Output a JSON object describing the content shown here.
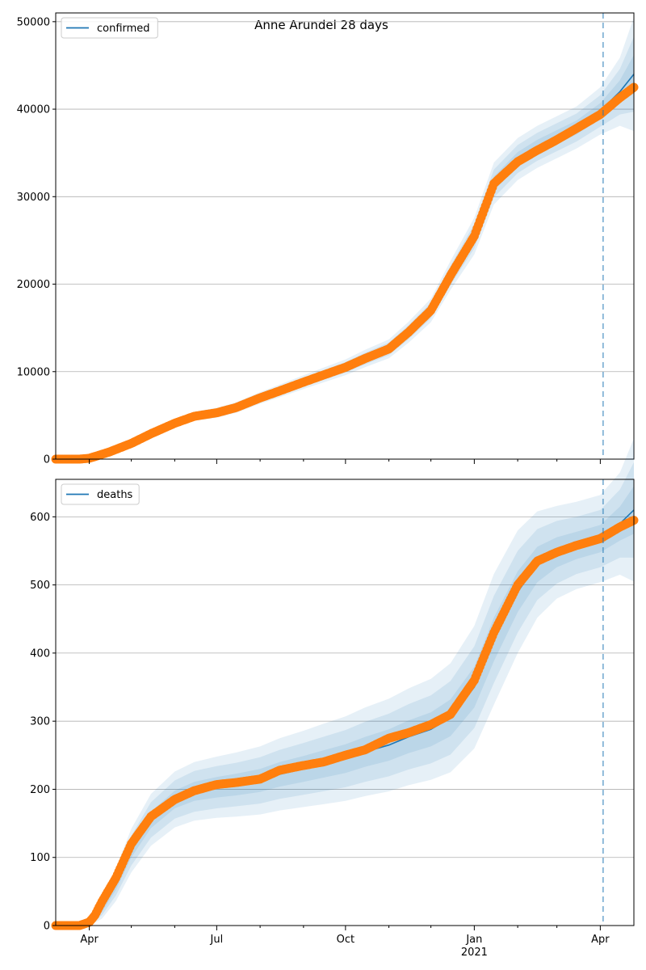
{
  "figure": {
    "title": "Anne Arundel 28 days"
  },
  "chart_data": [
    {
      "type": "line",
      "title": "",
      "legend": "confirmed",
      "legend_position": "upper-left",
      "grid": "y",
      "ylim": [
        0,
        51000
      ],
      "y_ticks": [
        0,
        10000,
        20000,
        30000,
        40000,
        50000
      ],
      "y_tick_labels": [
        "0",
        "10000",
        "20000",
        "30000",
        "40000",
        "50000"
      ],
      "forecast_start": "2021-04-03",
      "colors": {
        "model": "#1f77b4",
        "observed": "#ff7f0e",
        "band": "#1f77b4"
      },
      "model": {
        "x": [
          "2020-03-08",
          "2020-03-15",
          "2020-03-25",
          "2020-04-01",
          "2020-04-15",
          "2020-05-01",
          "2020-05-15",
          "2020-06-01",
          "2020-06-15",
          "2020-07-01",
          "2020-07-15",
          "2020-08-01",
          "2020-08-15",
          "2020-09-01",
          "2020-09-15",
          "2020-10-01",
          "2020-10-15",
          "2020-11-01",
          "2020-11-15",
          "2020-12-01",
          "2020-12-15",
          "2021-01-01",
          "2021-01-15",
          "2021-02-01",
          "2021-02-15",
          "2021-03-01",
          "2021-03-15",
          "2021-04-01",
          "2021-04-15",
          "2021-04-25"
        ],
        "y": [
          0,
          0,
          0,
          100,
          800,
          1800,
          2900,
          4100,
          4900,
          5300,
          5900,
          7000,
          7800,
          8800,
          9600,
          10500,
          11500,
          12600,
          14500,
          17000,
          21000,
          25500,
          31500,
          34300,
          35700,
          36800,
          37900,
          39800,
          42000,
          44000
        ],
        "band_half_widths": [
          [
            0,
            0,
            0,
            30,
            70,
            100,
            130,
            150,
            170,
            190,
            200,
            220,
            240,
            260,
            280,
            300,
            330,
            360,
            400,
            450,
            550,
            700,
            800,
            800,
            800,
            800,
            800,
            900,
            1300,
            2200
          ],
          [
            0,
            0,
            0,
            60,
            140,
            200,
            260,
            300,
            340,
            380,
            400,
            440,
            480,
            520,
            560,
            600,
            660,
            720,
            800,
            900,
            1100,
            1400,
            1600,
            1600,
            1600,
            1600,
            1600,
            1800,
            2600,
            4300
          ],
          [
            0,
            0,
            0,
            90,
            210,
            300,
            390,
            450,
            510,
            570,
            600,
            660,
            720,
            780,
            840,
            900,
            990,
            1080,
            1200,
            1350,
            1650,
            2100,
            2400,
            2400,
            2400,
            2400,
            2400,
            2700,
            3900,
            6500
          ]
        ]
      },
      "observed": {
        "x": [
          "2020-03-08",
          "2020-03-25",
          "2020-04-01",
          "2020-04-15",
          "2020-05-01",
          "2020-05-15",
          "2020-06-01",
          "2020-06-15",
          "2020-07-01",
          "2020-07-15",
          "2020-08-01",
          "2020-08-15",
          "2020-09-01",
          "2020-09-15",
          "2020-10-01",
          "2020-10-15",
          "2020-11-01",
          "2020-11-15",
          "2020-12-01",
          "2020-12-15",
          "2021-01-01",
          "2021-01-15",
          "2021-02-01",
          "2021-02-15",
          "2021-03-01",
          "2021-03-15",
          "2021-04-01",
          "2021-04-15",
          "2021-04-25"
        ],
        "y": [
          0,
          0,
          100,
          800,
          1800,
          2900,
          4100,
          4900,
          5300,
          5900,
          7000,
          7800,
          8800,
          9600,
          10500,
          11500,
          12600,
          14500,
          17000,
          21000,
          25500,
          31500,
          34000,
          35300,
          36500,
          37800,
          39400,
          41300,
          42500
        ]
      }
    },
    {
      "type": "line",
      "title": "",
      "legend": "deaths",
      "legend_position": "upper-left",
      "grid": "y",
      "ylim": [
        0,
        655
      ],
      "y_ticks": [
        0,
        100,
        200,
        300,
        400,
        500,
        600
      ],
      "y_tick_labels": [
        "0",
        "100",
        "200",
        "300",
        "400",
        "500",
        "600"
      ],
      "x_ticks": [
        "2020-04-01",
        "2020-07-01",
        "2020-10-01",
        "2021-01-01",
        "2021-04-01"
      ],
      "x_tick_labels": [
        "Apr",
        "Jul",
        "Oct",
        "Jan",
        "Apr"
      ],
      "x_minor_ticks": [
        "2020-05-01",
        "2020-06-01",
        "2020-08-01",
        "2020-09-01",
        "2020-11-01",
        "2020-12-01",
        "2021-02-01",
        "2021-03-01",
        "2021-05-01"
      ],
      "x_secondary_label": {
        "x": "2021-01-01",
        "text": "2021"
      },
      "xlim": [
        "2020-03-08",
        "2021-04-25"
      ],
      "forecast_start": "2021-04-03",
      "colors": {
        "model": "#1f77b4",
        "observed": "#ff7f0e",
        "band": "#1f77b4"
      },
      "model": {
        "x": [
          "2020-03-08",
          "2020-03-25",
          "2020-04-01",
          "2020-04-10",
          "2020-04-20",
          "2020-05-01",
          "2020-05-15",
          "2020-06-01",
          "2020-06-15",
          "2020-07-01",
          "2020-07-15",
          "2020-08-01",
          "2020-08-15",
          "2020-09-01",
          "2020-09-15",
          "2020-10-01",
          "2020-10-15",
          "2020-11-01",
          "2020-11-15",
          "2020-12-01",
          "2020-12-15",
          "2021-01-01",
          "2021-01-15",
          "2021-02-01",
          "2021-02-15",
          "2021-03-01",
          "2021-03-15",
          "2021-04-01",
          "2021-04-15",
          "2021-04-25"
        ],
        "y": [
          0,
          0,
          5,
          25,
          60,
          110,
          155,
          185,
          197,
          203,
          207,
          213,
          222,
          230,
          237,
          245,
          255,
          265,
          277,
          288,
          305,
          350,
          420,
          490,
          530,
          548,
          558,
          568,
          590,
          610
        ],
        "band_half_widths": [
          [
            0,
            0,
            2,
            5,
            8,
            10,
            12,
            13,
            14,
            15,
            16,
            17,
            18,
            19,
            20,
            21,
            22,
            23,
            24,
            25,
            27,
            30,
            32,
            30,
            26,
            22,
            20,
            20,
            25,
            35
          ],
          [
            0,
            0,
            4,
            10,
            16,
            22,
            26,
            28,
            30,
            31,
            32,
            34,
            36,
            38,
            40,
            42,
            44,
            46,
            48,
            50,
            54,
            60,
            64,
            60,
            52,
            46,
            42,
            42,
            50,
            70
          ],
          [
            0,
            0,
            6,
            15,
            24,
            32,
            38,
            41,
            43,
            45,
            47,
            50,
            53,
            56,
            59,
            62,
            65,
            68,
            71,
            74,
            80,
            90,
            96,
            90,
            78,
            68,
            64,
            64,
            75,
            105
          ]
        ]
      },
      "observed": {
        "x": [
          "2020-03-08",
          "2020-03-25",
          "2020-04-01",
          "2020-04-05",
          "2020-04-10",
          "2020-04-20",
          "2020-05-01",
          "2020-05-15",
          "2020-06-01",
          "2020-06-15",
          "2020-07-01",
          "2020-07-15",
          "2020-08-01",
          "2020-08-15",
          "2020-09-01",
          "2020-09-15",
          "2020-10-01",
          "2020-10-15",
          "2020-11-01",
          "2020-11-15",
          "2020-12-01",
          "2020-12-15",
          "2021-01-01",
          "2021-01-15",
          "2021-02-01",
          "2021-02-15",
          "2021-03-01",
          "2021-03-15",
          "2021-04-01",
          "2021-04-15",
          "2021-04-25"
        ],
        "y": [
          0,
          0,
          5,
          15,
          35,
          70,
          120,
          160,
          185,
          198,
          207,
          210,
          215,
          228,
          235,
          240,
          250,
          258,
          275,
          283,
          295,
          310,
          360,
          430,
          500,
          535,
          548,
          558,
          568,
          585,
          595
        ]
      }
    }
  ]
}
